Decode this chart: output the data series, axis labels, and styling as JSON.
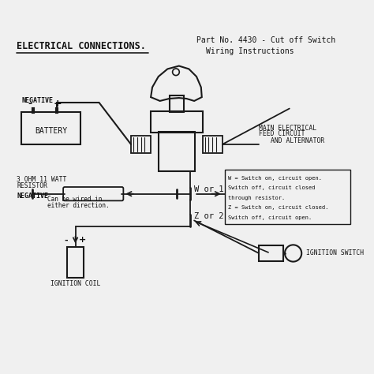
{
  "bg_color": "#f0f0f0",
  "title_left": "ELECTRICAL CONNECTIONS.",
  "title_right_line1": "Part No. 4430 - Cut off Switch",
  "title_right_line2": "Wiring Instructions",
  "battery_label": "BATTERY",
  "negative_label_battery": "NEGATIVE",
  "resistor_label_line1": "3 OHM 11 WATT",
  "resistor_label_line2": "RESISTOR",
  "negative_label_resistor": "NEGATIVE",
  "can_be_wired_line1": "Can be wired in",
  "can_be_wired_line2": "either direction.",
  "w_or_1": "W or 1",
  "z_or_2": "Z or 2",
  "main_feed_line1": "MAIN ELECTRICAL",
  "main_feed_line2": "FEED CIRCUIT",
  "and_alternator": "AND ALTERNATOR",
  "ignition_coil": "IGNITION COIL",
  "ignition_switch": "IGNITION SWITCH",
  "info_line1": "W = Switch on, circuit open.",
  "info_line2": "Switch off, circuit closed",
  "info_line3": "through resistor.",
  "info_line4": "Z = Switch on, circuit closed.",
  "info_line5": "Switch off, circuit open.",
  "line_color": "#1a1a1a",
  "text_color": "#111111"
}
